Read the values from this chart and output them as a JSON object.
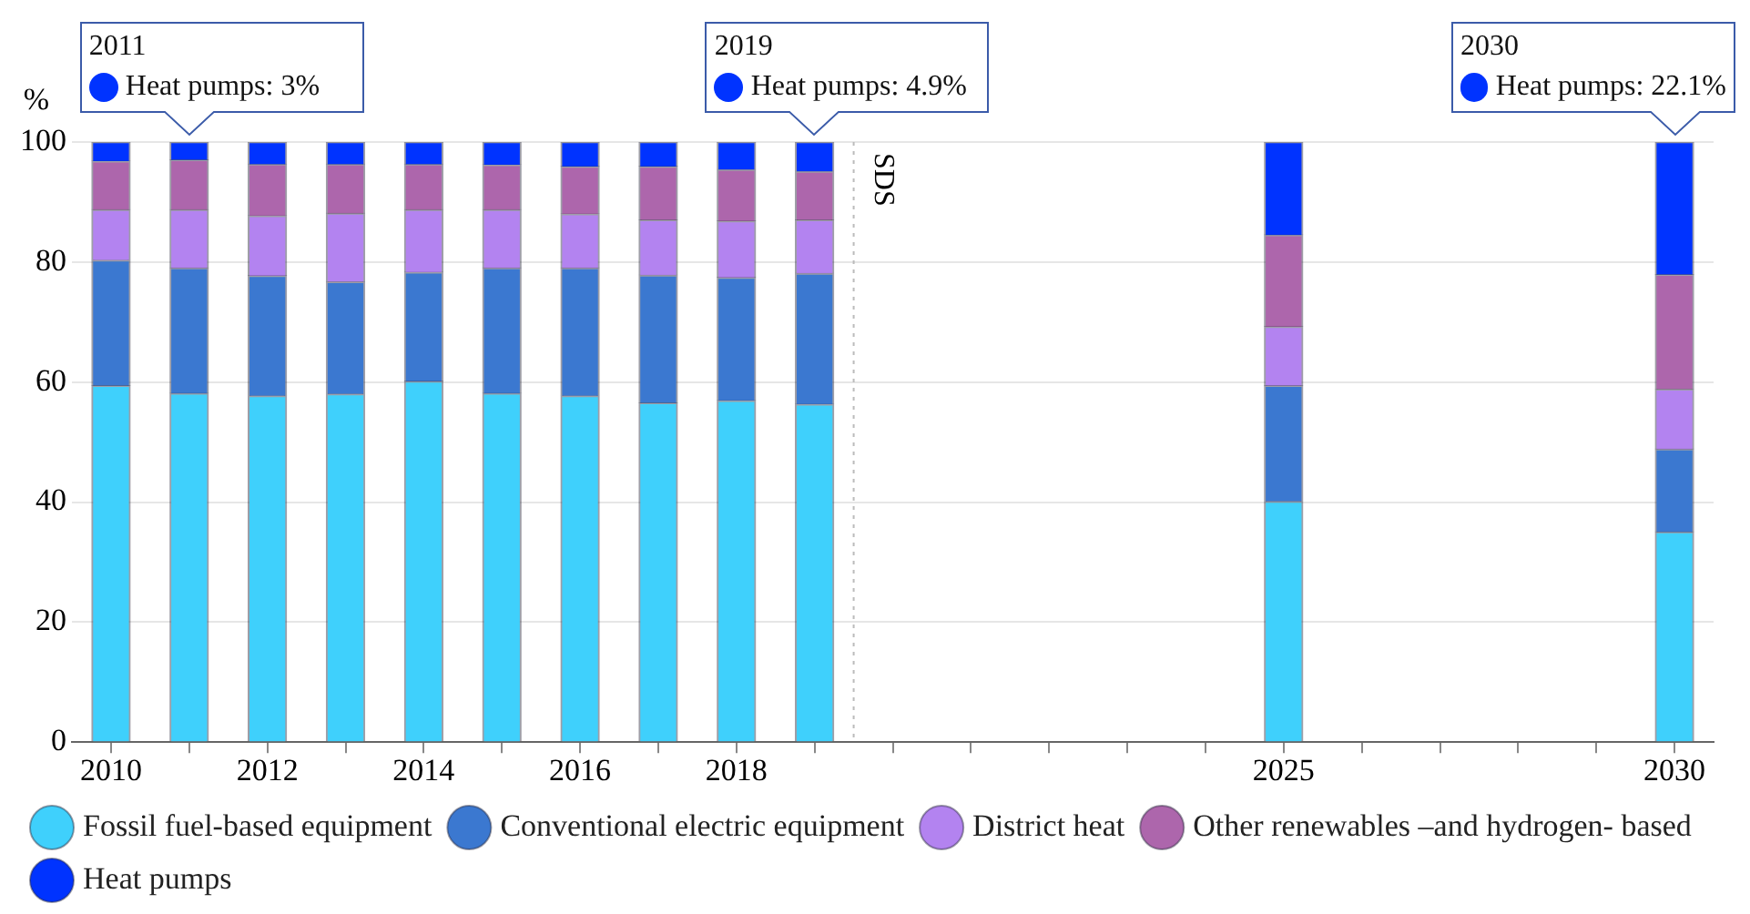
{
  "chart_data": {
    "type": "bar",
    "stacked": true,
    "ylabel": "%",
    "x": [
      2010,
      2011,
      2012,
      2013,
      2014,
      2015,
      2016,
      2017,
      2018,
      2019,
      2025,
      2030
    ],
    "series": [
      {
        "name": "Fossil fuel-based equipment",
        "color": "#3fd0fc",
        "values": [
          59.4,
          58.1,
          57.7,
          58.0,
          60.1,
          58.1,
          57.7,
          56.5,
          56.9,
          56.3,
          40.1,
          35.0
        ]
      },
      {
        "name": "Conventional electric equipment",
        "color": "#3b78d0",
        "values": [
          20.9,
          20.9,
          20.0,
          18.7,
          18.2,
          20.9,
          21.3,
          21.3,
          20.5,
          21.8,
          19.3,
          13.8
        ]
      },
      {
        "name": "District heat",
        "color": "#b383f0",
        "values": [
          8.4,
          9.7,
          10.0,
          11.4,
          10.4,
          9.7,
          9.0,
          9.2,
          9.4,
          8.9,
          9.8,
          10.0
        ]
      },
      {
        "name": "Other renewables –and hydrogen- based",
        "color": "#ad66ac",
        "values": [
          8.1,
          8.3,
          8.6,
          8.2,
          7.6,
          7.5,
          7.9,
          8.9,
          8.6,
          8.1,
          15.3,
          19.1
        ]
      },
      {
        "name": "Heat pumps",
        "color": "#0033ff",
        "values": [
          3.2,
          3.0,
          3.7,
          3.7,
          3.7,
          3.8,
          4.1,
          4.1,
          4.6,
          4.9,
          15.5,
          22.1
        ]
      }
    ],
    "xlim": [
      2009.5,
      2030.5
    ],
    "xticks": [
      2010,
      {
        "value": 2011,
        "label": null
      },
      2012,
      {
        "value": 2013,
        "label": null
      },
      2014,
      {
        "value": 2015,
        "label": null
      },
      2016,
      {
        "value": 2017,
        "label": null
      },
      2018,
      {
        "value": 2019,
        "label": null
      },
      {
        "value": 2020,
        "label": null
      },
      {
        "value": 2021,
        "label": null
      },
      {
        "value": 2022,
        "label": null
      },
      {
        "value": 2023,
        "label": null
      },
      {
        "value": 2024,
        "label": null
      },
      2025,
      {
        "value": 2026,
        "label": null
      },
      {
        "value": 2027,
        "label": null
      },
      {
        "value": 2028,
        "label": null
      },
      {
        "value": 2029,
        "label": null
      },
      2030
    ],
    "ylim": [
      0,
      100
    ],
    "yticks": [
      0,
      20,
      40,
      60,
      80,
      100
    ],
    "grid": "y",
    "legend": "bottom",
    "ref_lines": [
      {
        "axis": "x",
        "value": 2019.5,
        "label": "SDS",
        "color": "#bbbbbb",
        "line_style": "dotted"
      }
    ],
    "annotations": [
      {
        "text": "2011\nHeat pumps: 3%",
        "x": 2011,
        "y": 100
      },
      {
        "text": "2019\nHeat pumps: 4.9%",
        "x": 2019,
        "y": 100
      },
      {
        "text": "2030\nHeat pumps: 22.1%",
        "x": 2030,
        "y": 100
      }
    ]
  }
}
